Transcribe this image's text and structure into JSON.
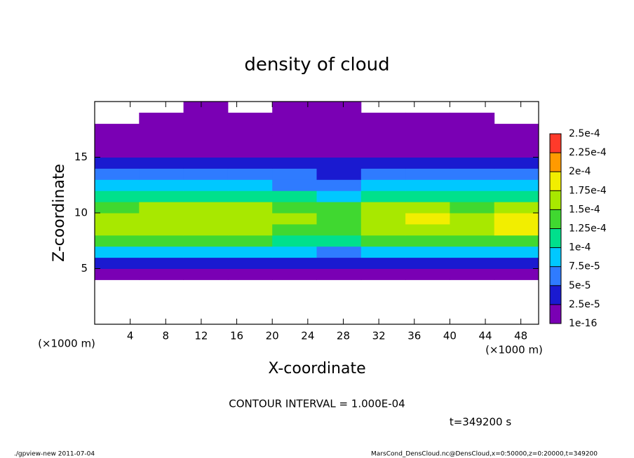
{
  "chart_data": {
    "type": "heatmap",
    "title": "density of cloud",
    "x_label": "X-coordinate",
    "y_label": "Z-coordinate",
    "x_unit_label": "(×1000 m)",
    "y_unit_label": "(×1000 m)",
    "contour_interval_label": "CONTOUR INTERVAL = 1.000E-04",
    "time_label": "t=349200 s",
    "footer_left": "./gpview-new  2011-07-04",
    "footer_right": "MarsCond_DensCloud.nc@DensCloud,x=0:50000,z=0:20000,t=349200",
    "xlim": [
      0,
      50
    ],
    "ylim": [
      0,
      20
    ],
    "xticks": [
      4,
      8,
      12,
      16,
      20,
      24,
      28,
      32,
      36,
      40,
      44,
      48
    ],
    "yticks": [
      5,
      10,
      15
    ],
    "x": [
      2.5,
      7.5,
      12.5,
      17.5,
      22.5,
      27.5,
      32.5,
      37.5,
      42.5,
      47.5
    ],
    "y": [
      0.5,
      1.5,
      2.5,
      3.5,
      4.5,
      5.5,
      6.5,
      7.5,
      8.5,
      9.5,
      10.5,
      11.5,
      12.5,
      13.5,
      14.5,
      15.5,
      16.5,
      17.5,
      18.5,
      19.5
    ],
    "values": [
      [
        null,
        null,
        null,
        null,
        null,
        null,
        null,
        null,
        null,
        null
      ],
      [
        null,
        null,
        null,
        null,
        null,
        null,
        null,
        null,
        null,
        null
      ],
      [
        null,
        null,
        null,
        null,
        null,
        null,
        null,
        null,
        null,
        null
      ],
      [
        null,
        null,
        null,
        null,
        null,
        null,
        null,
        null,
        null,
        null
      ],
      [
        8e-06,
        8e-06,
        8e-06,
        8e-06,
        8e-06,
        1e-05,
        8e-06,
        8e-06,
        1e-05,
        8e-06
      ],
      [
        3e-05,
        3e-05,
        3e-05,
        3e-05,
        3e-05,
        3.5e-05,
        3e-05,
        3e-05,
        3e-05,
        3e-05
      ],
      [
        9e-05,
        9.5e-05,
        9e-05,
        9e-05,
        8e-05,
        7e-05,
        9e-05,
        9e-05,
        9e-05,
        9e-05
      ],
      [
        0.00014,
        0.00014,
        0.000135,
        0.00013,
        0.000115,
        0.00012,
        0.00014,
        0.000145,
        0.00014,
        0.000145
      ],
      [
        0.00017,
        0.00016,
        0.00016,
        0.00016,
        0.00014,
        0.000145,
        0.000165,
        0.00017,
        0.000165,
        0.000175
      ],
      [
        0.00017,
        0.00016,
        0.000165,
        0.00017,
        0.00015,
        0.000145,
        0.00017,
        0.00018,
        0.00017,
        0.00018
      ],
      [
        0.000145,
        0.00015,
        0.000155,
        0.00015,
        0.00014,
        0.000135,
        0.00015,
        0.000155,
        0.000145,
        0.00015
      ],
      [
        0.000105,
        0.000115,
        0.00011,
        0.000105,
        0.0001,
        9.5e-05,
        0.000105,
        0.00011,
        0.000105,
        0.000105
      ],
      [
        7.5e-05,
        8.5e-05,
        8e-05,
        8e-05,
        7e-05,
        7e-05,
        8e-05,
        8e-05,
        7.5e-05,
        8e-05
      ],
      [
        5e-05,
        5.5e-05,
        5e-05,
        5e-05,
        5e-05,
        4.5e-05,
        5e-05,
        5e-05,
        5e-05,
        5e-05
      ],
      [
        3e-05,
        3e-05,
        3e-05,
        3e-05,
        3e-05,
        3e-05,
        3e-05,
        3e-05,
        3e-05,
        3e-05
      ],
      [
        2e-05,
        2e-05,
        2e-05,
        2e-05,
        2e-05,
        2e-05,
        2e-05,
        2e-05,
        2e-05,
        2e-05
      ],
      [
        1e-05,
        1e-05,
        1e-05,
        1e-05,
        1e-05,
        1e-05,
        1e-05,
        1e-05,
        1e-05,
        1e-05
      ],
      [
        5e-06,
        5e-06,
        5e-06,
        5e-06,
        5e-06,
        5e-06,
        5e-06,
        5e-06,
        5e-06,
        5e-06
      ],
      [
        null,
        5e-06,
        5e-06,
        5e-06,
        5e-06,
        5e-06,
        5e-06,
        5e-06,
        5e-06,
        null
      ],
      [
        null,
        null,
        5e-06,
        null,
        5e-06,
        5e-06,
        null,
        null,
        null,
        null
      ]
    ],
    "levels": [
      1e-16,
      {
        "value": 2.5e-05,
        "label": "2.5e-5"
      },
      {
        "value": 5e-05,
        "label": "5e-5"
      },
      {
        "value": 7.5e-05,
        "label": "7.5e-5"
      },
      {
        "value": 0.0001,
        "label": "1e-4"
      },
      {
        "value": 0.000125,
        "label": "1.25e-4"
      },
      {
        "value": 0.00015,
        "label": "1.5e-4"
      },
      {
        "value": 0.000175,
        "label": "1.75e-4"
      },
      {
        "value": 0.0002,
        "label": "2e-4"
      },
      {
        "value": 0.000225,
        "label": "2.25e-4"
      },
      {
        "value": 0.00025,
        "label": "2.5e-4"
      }
    ],
    "colors": [
      "#7a00b4",
      "#1a1ad0",
      "#2f7bff",
      "#00c8ff",
      "#00e08c",
      "#40d830",
      "#a8e800",
      "#f2ee00",
      "#ff9a00",
      "#ff3a2a"
    ]
  }
}
